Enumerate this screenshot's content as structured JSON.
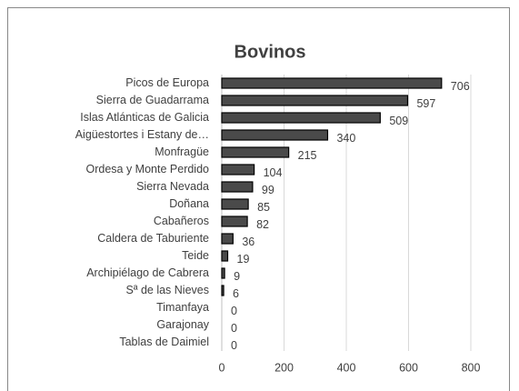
{
  "chart_data": {
    "type": "bar",
    "orientation": "horizontal",
    "title": "Bovinos",
    "categories": [
      "Picos de Europa",
      "Sierra de Guadarrama",
      "Islas Atlánticas de Galicia",
      "Aigüestortes i Estany de…",
      "Monfragüe",
      "Ordesa y Monte Perdido",
      "Sierra Nevada",
      "Doñana",
      "Cabañeros",
      "Caldera de Taburiente",
      "Teide",
      "Archipiélago de Cabrera",
      "Sª de las Nieves",
      "Timanfaya",
      "Garajonay",
      "Tablas de Daimiel"
    ],
    "values": [
      706,
      597,
      509,
      340,
      215,
      104,
      99,
      85,
      82,
      36,
      19,
      9,
      6,
      0,
      0,
      0
    ],
    "color": "#4a4a4a",
    "xlim": [
      0,
      800
    ],
    "xticks": [
      0,
      200,
      400,
      600,
      800
    ],
    "grid": true
  }
}
